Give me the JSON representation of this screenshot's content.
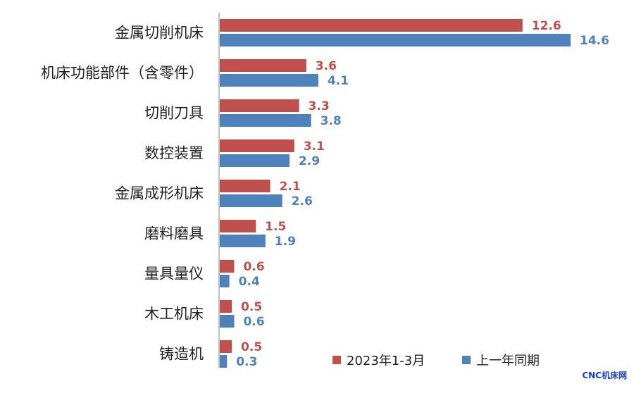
{
  "chart_data": {
    "type": "bar",
    "orientation": "horizontal",
    "categories": [
      "金属切削机床",
      "机床功能部件（含零件）",
      "切削刀具",
      "数控装置",
      "金属成形机床",
      "磨料磨具",
      "量具量仪",
      "木工机床",
      "铸造机"
    ],
    "series": [
      {
        "name": "2023年1-3月",
        "color": "#c0504d",
        "values": [
          12.6,
          3.6,
          3.3,
          3.1,
          2.1,
          1.5,
          0.6,
          0.5,
          0.5
        ]
      },
      {
        "name": "上一年同期",
        "color": "#4f81bd",
        "values": [
          14.6,
          4.1,
          3.8,
          2.9,
          2.6,
          1.9,
          0.4,
          0.6,
          0.3
        ]
      }
    ],
    "xlim": [
      0,
      15
    ],
    "grid": false,
    "legend_position": "bottom-right"
  },
  "watermark": "CNC机床网"
}
